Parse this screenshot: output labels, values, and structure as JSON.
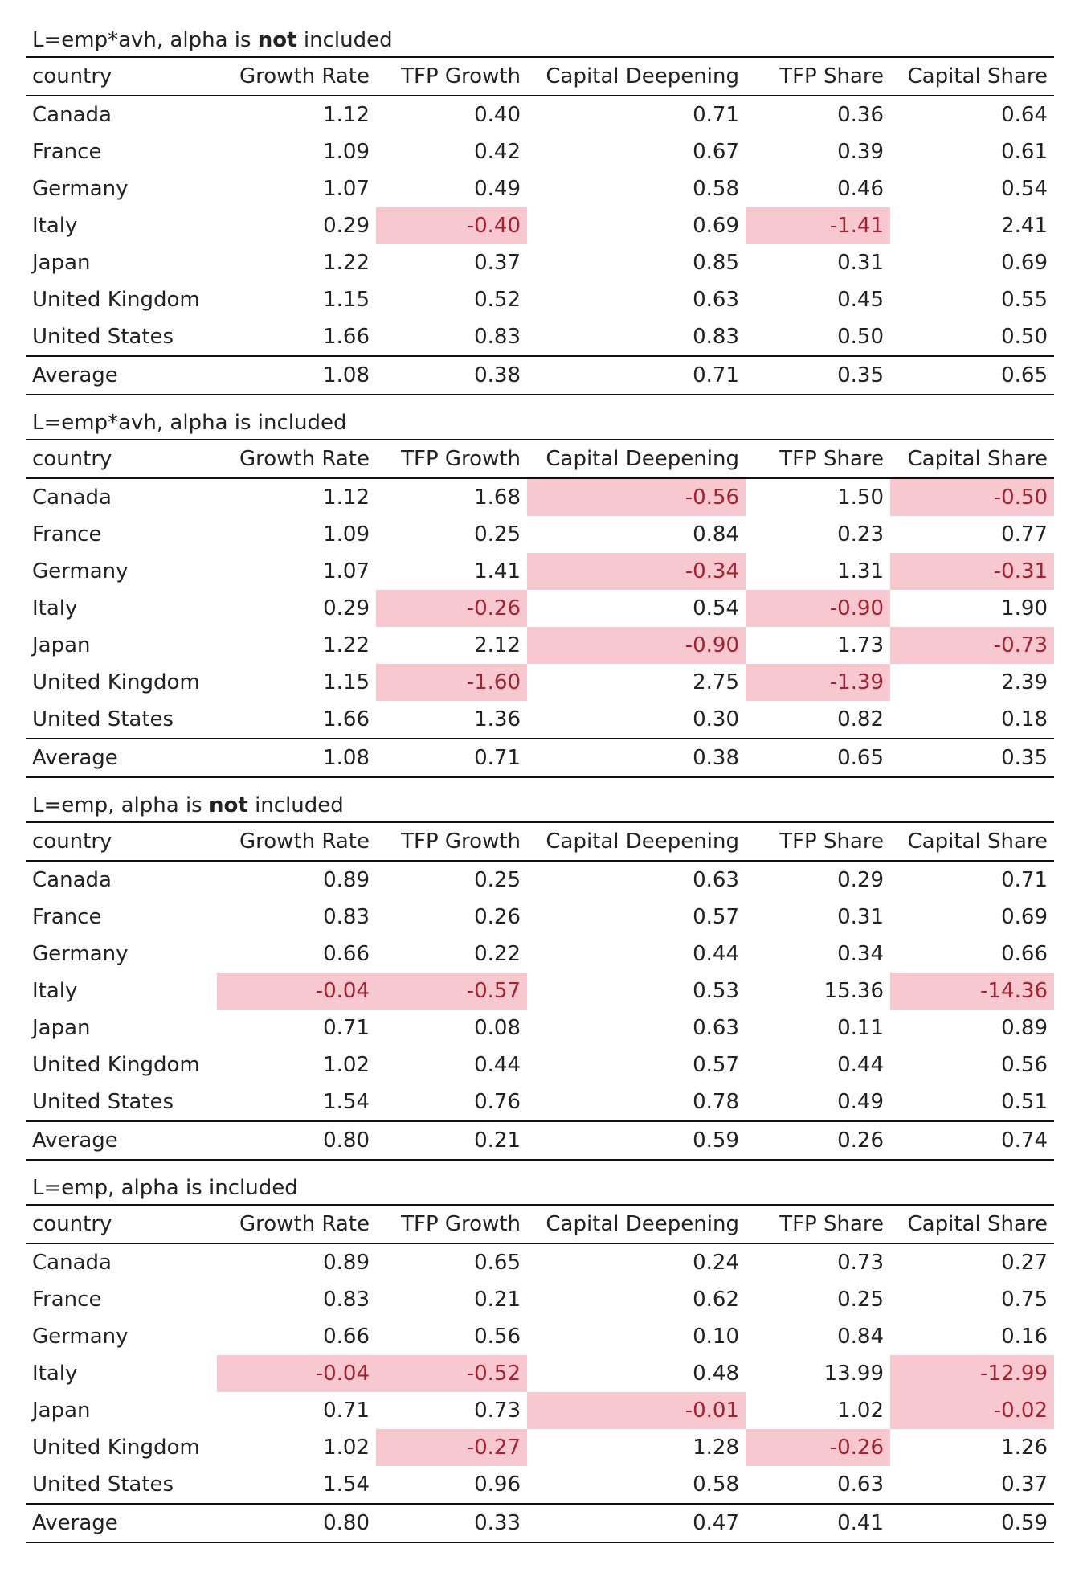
{
  "colors": {
    "negative_fill": "#f7c8d0",
    "negative_text": "#a3222d"
  },
  "columns": [
    "country",
    "Growth Rate",
    "TFP Growth",
    "Capital Deepening",
    "TFP Share",
    "Capital Share"
  ],
  "tables": [
    {
      "title_pre": "L=emp*avh, alpha is ",
      "title_bold": "not",
      "title_post": " included",
      "rows": [
        [
          "Canada",
          "1.12",
          "0.40",
          "0.71",
          "0.36",
          "0.64"
        ],
        [
          "France",
          "1.09",
          "0.42",
          "0.67",
          "0.39",
          "0.61"
        ],
        [
          "Germany",
          "1.07",
          "0.49",
          "0.58",
          "0.46",
          "0.54"
        ],
        [
          "Italy",
          "0.29",
          "-0.40",
          "0.69",
          "-1.41",
          "2.41"
        ],
        [
          "Japan",
          "1.22",
          "0.37",
          "0.85",
          "0.31",
          "0.69"
        ],
        [
          "United Kingdom",
          "1.15",
          "0.52",
          "0.63",
          "0.45",
          "0.55"
        ],
        [
          "United States",
          "1.66",
          "0.83",
          "0.83",
          "0.50",
          "0.50"
        ]
      ],
      "average": [
        "Average",
        "1.08",
        "0.38",
        "0.71",
        "0.35",
        "0.65"
      ]
    },
    {
      "title_pre": "L=emp*avh, alpha is included",
      "title_bold": "",
      "title_post": "",
      "rows": [
        [
          "Canada",
          "1.12",
          "1.68",
          "-0.56",
          "1.50",
          "-0.50"
        ],
        [
          "France",
          "1.09",
          "0.25",
          "0.84",
          "0.23",
          "0.77"
        ],
        [
          "Germany",
          "1.07",
          "1.41",
          "-0.34",
          "1.31",
          "-0.31"
        ],
        [
          "Italy",
          "0.29",
          "-0.26",
          "0.54",
          "-0.90",
          "1.90"
        ],
        [
          "Japan",
          "1.22",
          "2.12",
          "-0.90",
          "1.73",
          "-0.73"
        ],
        [
          "United Kingdom",
          "1.15",
          "-1.60",
          "2.75",
          "-1.39",
          "2.39"
        ],
        [
          "United States",
          "1.66",
          "1.36",
          "0.30",
          "0.82",
          "0.18"
        ]
      ],
      "average": [
        "Average",
        "1.08",
        "0.71",
        "0.38",
        "0.65",
        "0.35"
      ]
    },
    {
      "title_pre": "L=emp, alpha is ",
      "title_bold": "not",
      "title_post": " included",
      "rows": [
        [
          "Canada",
          "0.89",
          "0.25",
          "0.63",
          "0.29",
          "0.71"
        ],
        [
          "France",
          "0.83",
          "0.26",
          "0.57",
          "0.31",
          "0.69"
        ],
        [
          "Germany",
          "0.66",
          "0.22",
          "0.44",
          "0.34",
          "0.66"
        ],
        [
          "Italy",
          "-0.04",
          "-0.57",
          "0.53",
          "15.36",
          "-14.36"
        ],
        [
          "Japan",
          "0.71",
          "0.08",
          "0.63",
          "0.11",
          "0.89"
        ],
        [
          "United Kingdom",
          "1.02",
          "0.44",
          "0.57",
          "0.44",
          "0.56"
        ],
        [
          "United States",
          "1.54",
          "0.76",
          "0.78",
          "0.49",
          "0.51"
        ]
      ],
      "average": [
        "Average",
        "0.80",
        "0.21",
        "0.59",
        "0.26",
        "0.74"
      ]
    },
    {
      "title_pre": "L=emp, alpha is included",
      "title_bold": "",
      "title_post": "",
      "rows": [
        [
          "Canada",
          "0.89",
          "0.65",
          "0.24",
          "0.73",
          "0.27"
        ],
        [
          "France",
          "0.83",
          "0.21",
          "0.62",
          "0.25",
          "0.75"
        ],
        [
          "Germany",
          "0.66",
          "0.56",
          "0.10",
          "0.84",
          "0.16"
        ],
        [
          "Italy",
          "-0.04",
          "-0.52",
          "0.48",
          "13.99",
          "-12.99"
        ],
        [
          "Japan",
          "0.71",
          "0.73",
          "-0.01",
          "1.02",
          "-0.02"
        ],
        [
          "United Kingdom",
          "1.02",
          "-0.27",
          "1.28",
          "-0.26",
          "1.26"
        ],
        [
          "United States",
          "1.54",
          "0.96",
          "0.58",
          "0.63",
          "0.37"
        ]
      ],
      "average": [
        "Average",
        "0.80",
        "0.33",
        "0.47",
        "0.41",
        "0.59"
      ]
    }
  ]
}
